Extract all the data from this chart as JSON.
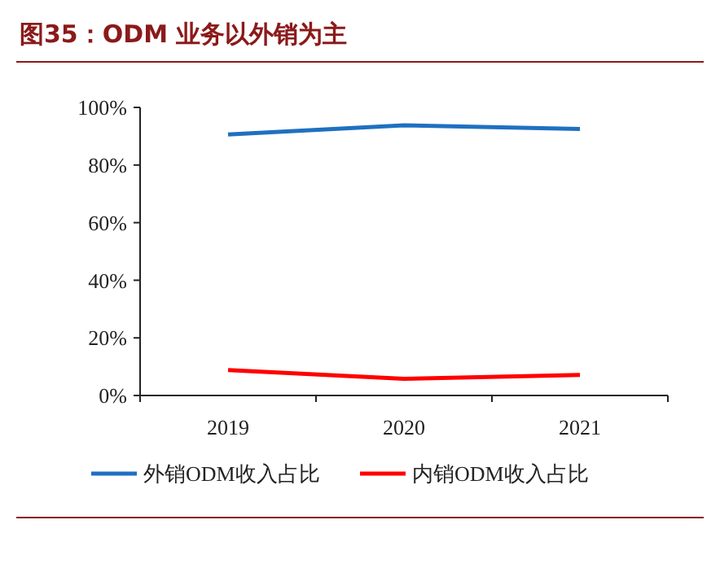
{
  "chart_data": {
    "type": "line",
    "title": "图35：ODM 业务以外销为主",
    "categories": [
      "2019",
      "2020",
      "2021"
    ],
    "series": [
      {
        "name": "外销ODM收入占比",
        "color": "#1f70c1",
        "values": [
          90.6,
          93.8,
          92.5
        ]
      },
      {
        "name": "内销ODM收入占比",
        "color": "#ff0000",
        "values": [
          8.8,
          5.8,
          7.1
        ]
      }
    ],
    "ylim": [
      0,
      100
    ],
    "yticks": [
      {
        "value": 0,
        "label": "0%"
      },
      {
        "value": 20,
        "label": "20%"
      },
      {
        "value": 40,
        "label": "40%"
      },
      {
        "value": 60,
        "label": "60%"
      },
      {
        "value": 80,
        "label": "80%"
      },
      {
        "value": 100,
        "label": "100%"
      }
    ],
    "grid": false,
    "legend": "bottom",
    "marker": "none",
    "line_style": "solid"
  }
}
